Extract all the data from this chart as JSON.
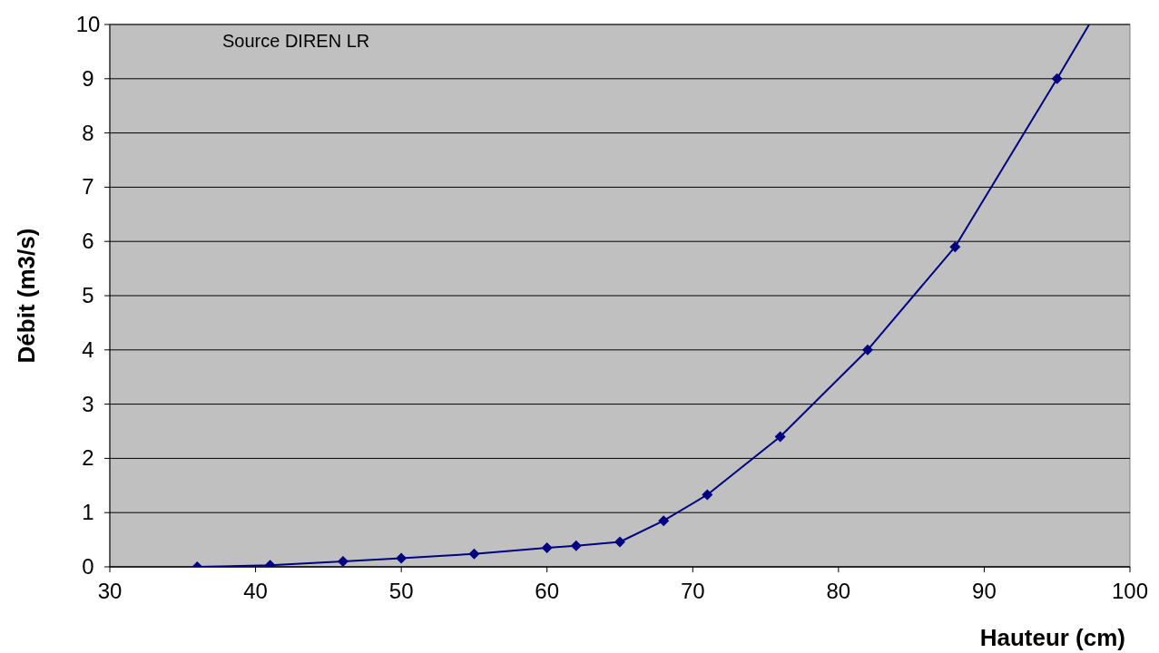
{
  "chart_data": {
    "type": "line",
    "xlabel": "Hauteur (cm)",
    "ylabel": "Débit (m3/s)",
    "annotations": [
      "Source DIREN LR"
    ],
    "xlim": [
      30,
      100
    ],
    "xticks": [
      30,
      40,
      50,
      60,
      70,
      80,
      90,
      100
    ],
    "ylim": [
      0,
      10
    ],
    "yticks": [
      0,
      1,
      2,
      3,
      4,
      5,
      6,
      7,
      8,
      9,
      10
    ],
    "grid": "y",
    "marker": "diamond",
    "line_style": "solid",
    "series": [
      {
        "color": "#000080",
        "x": [
          36,
          41,
          46,
          50,
          55,
          60,
          62,
          65,
          68,
          71,
          76,
          82,
          88,
          95
        ],
        "values": [
          0,
          0.03,
          0.1,
          0.16,
          0.24,
          0.35,
          0.39,
          0.46,
          0.85,
          1.33,
          2.4,
          4.0,
          5.9,
          9.0
        ]
      },
      {
        "color": "#000080",
        "marker": "none",
        "x": [
          95,
          97.2
        ],
        "values": [
          9.0,
          10
        ]
      }
    ]
  }
}
